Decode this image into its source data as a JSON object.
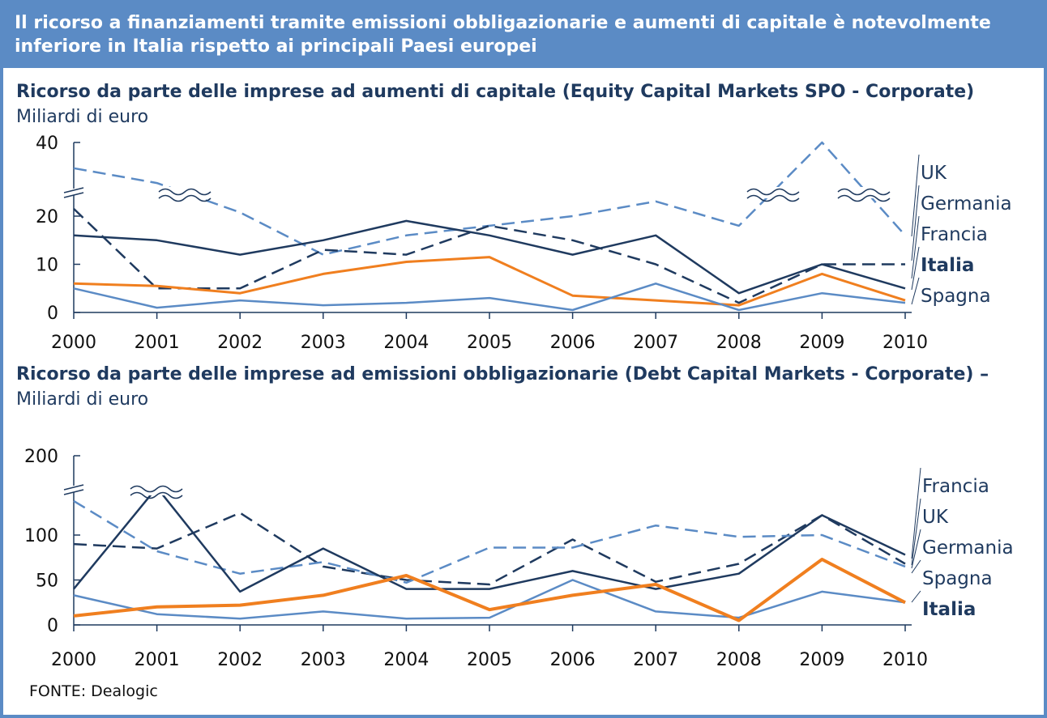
{
  "banner": {
    "title": "Il ricorso a finanziamenti tramite emissioni obbligazionarie e aumenti di capitale è notevolmente inferiore in Italia rispetto ai principali Paesi europei"
  },
  "source": "FONTE: Dealogic",
  "colors": {
    "banner": "#5b8bc5",
    "dark_navy": "#1f3a5f",
    "light_blue": "#5b8bc5",
    "orange": "#f07f1f"
  },
  "chart_data": [
    {
      "type": "line",
      "title_bold": "Ricorso da parte delle imprese ad aumenti di capitale (Equity Capital Markets SPO - Corporate)",
      "title_normal": "Miliardi di euro",
      "categories": [
        "2000",
        "2001",
        "2002",
        "2003",
        "2004",
        "2005",
        "2006",
        "2007",
        "2008",
        "2009",
        "2010"
      ],
      "y_ticks": [
        "0",
        "10",
        "20",
        "40"
      ],
      "axis_break": true,
      "series": [
        {
          "name": "UK",
          "color": "#5b8bc5",
          "style": "dashed",
          "values": [
            33,
            29,
            21,
            12,
            16,
            18,
            20,
            24,
            18,
            40,
            16
          ]
        },
        {
          "name": "Germania",
          "color": "#1f3a5f",
          "style": "solid",
          "values": [
            16,
            15,
            12,
            15,
            19,
            16,
            12,
            16,
            4,
            10,
            5
          ]
        },
        {
          "name": "Francia",
          "color": "#1f3a5f",
          "style": "dashed",
          "values": [
            22,
            5,
            5,
            13,
            12,
            18,
            15,
            10,
            2,
            10,
            10
          ]
        },
        {
          "name": "Italia",
          "color": "#f07f1f",
          "style": "solid",
          "bold": true,
          "values": [
            6,
            5.5,
            4,
            8,
            10.5,
            11.5,
            3.5,
            2.5,
            1.5,
            8,
            2.5
          ]
        },
        {
          "name": "Spagna",
          "color": "#5b8bc5",
          "style": "solid",
          "values": [
            5,
            1,
            2.5,
            1.5,
            2,
            3,
            0.5,
            6,
            0.5,
            4,
            2
          ]
        }
      ]
    },
    {
      "type": "line",
      "title_bold": "Ricorso da parte delle imprese ad emissioni obbligazionarie (Debt Capital Markets - Corporate) –",
      "title_normal": "Miliardi di euro",
      "categories": [
        "2000",
        "2001",
        "2002",
        "2003",
        "2004",
        "2005",
        "2006",
        "2007",
        "2008",
        "2009",
        "2010"
      ],
      "y_ticks": [
        "0",
        "50",
        "100",
        "200"
      ],
      "axis_break": true,
      "series": [
        {
          "name": "Francia",
          "color": "#1f3a5f",
          "style": "dashed",
          "values": [
            90,
            85,
            128,
            65,
            50,
            45,
            95,
            48,
            68,
            125,
            68
          ]
        },
        {
          "name": "UK",
          "color": "#5b8bc5",
          "style": "dashed",
          "values": [
            143,
            82,
            57,
            70,
            47,
            86,
            86,
            112,
            98,
            100,
            65
          ]
        },
        {
          "name": "Germania",
          "color": "#1f3a5f",
          "style": "solid",
          "values": [
            40,
            160,
            37,
            85,
            40,
            40,
            60,
            40,
            57,
            125,
            78
          ]
        },
        {
          "name": "Spagna",
          "color": "#5b8bc5",
          "style": "solid",
          "values": [
            33,
            12,
            7,
            15,
            7,
            8,
            50,
            15,
            8,
            37,
            25
          ]
        },
        {
          "name": "Italia",
          "color": "#f07f1f",
          "style": "solid",
          "bold": true,
          "values": [
            10,
            20,
            22,
            33,
            55,
            17,
            33,
            45,
            5,
            73,
            25
          ]
        }
      ]
    }
  ]
}
